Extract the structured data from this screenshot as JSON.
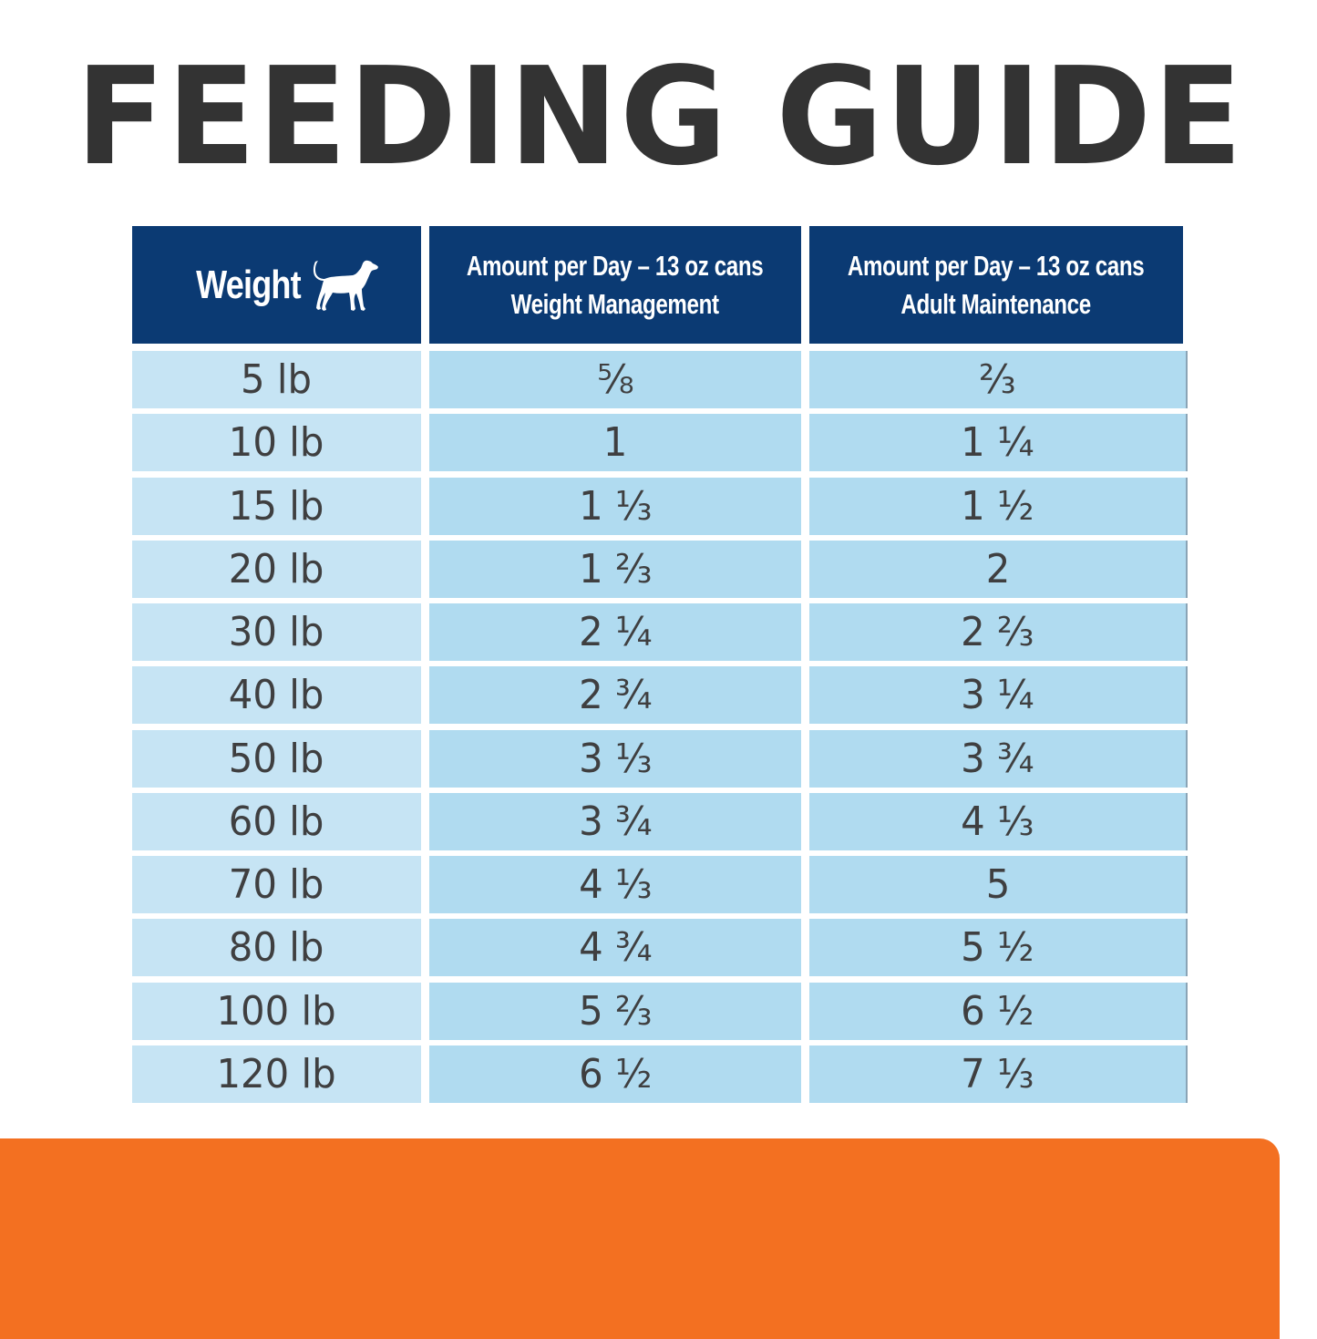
{
  "title": "FEEDING GUIDE",
  "colors": {
    "title": "#333333",
    "header_bg": "#0b3a73",
    "header_text": "#ffffff",
    "weight_col_bg": "#c6e4f4",
    "data_col_bg": "#b0dbf0",
    "cell_text": "#3f3f40",
    "accent_panel": "#f37021"
  },
  "table": {
    "headers": {
      "weight": {
        "label": "Weight",
        "icon": "dog-icon"
      },
      "weight_management": {
        "line1": "Amount per Day – 13 oz cans",
        "line2": "Weight Management"
      },
      "adult_maintenance": {
        "line1": "Amount per Day – 13 oz cans",
        "line2": "Adult Maintenance"
      }
    },
    "rows": [
      {
        "weight": "5 lb",
        "weight_management": "⅝",
        "adult_maintenance": "⅔"
      },
      {
        "weight": "10 lb",
        "weight_management": "1",
        "adult_maintenance": "1 ¼"
      },
      {
        "weight": "15 lb",
        "weight_management": "1 ⅓",
        "adult_maintenance": "1 ½"
      },
      {
        "weight": "20 lb",
        "weight_management": "1 ⅔",
        "adult_maintenance": "2"
      },
      {
        "weight": "30 lb",
        "weight_management": "2 ¼",
        "adult_maintenance": "2 ⅔"
      },
      {
        "weight": "40 lb",
        "weight_management": "2 ¾",
        "adult_maintenance": "3 ¼"
      },
      {
        "weight": "50 lb",
        "weight_management": "3 ⅓",
        "adult_maintenance": "3 ¾"
      },
      {
        "weight": "60 lb",
        "weight_management": "3 ¾",
        "adult_maintenance": "4 ⅓"
      },
      {
        "weight": "70 lb",
        "weight_management": "4 ⅓",
        "adult_maintenance": "5"
      },
      {
        "weight": "80 lb",
        "weight_management": "4 ¾",
        "adult_maintenance": "5 ½"
      },
      {
        "weight": "100 lb",
        "weight_management": "5 ⅔",
        "adult_maintenance": "6 ½"
      },
      {
        "weight": "120 lb",
        "weight_management": "6 ½",
        "adult_maintenance": "7 ⅓"
      }
    ]
  }
}
